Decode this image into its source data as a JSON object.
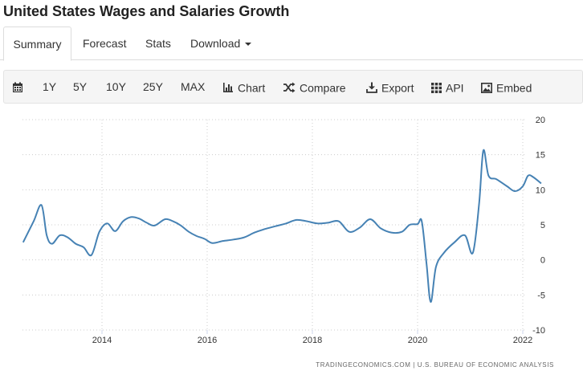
{
  "header": {
    "title": "United States Wages and Salaries Growth"
  },
  "tabs": [
    {
      "label": "Summary",
      "active": true
    },
    {
      "label": "Forecast"
    },
    {
      "label": "Stats"
    },
    {
      "label": "Download",
      "has_caret": true
    }
  ],
  "toolbar": {
    "calendar_icon": "calendar-icon",
    "ranges": [
      "1Y",
      "5Y",
      "10Y",
      "25Y",
      "MAX"
    ],
    "chart_label": "Chart",
    "compare_label": "Compare",
    "export_label": "Export",
    "api_label": "API",
    "embed_label": "Embed"
  },
  "source": "TRADINGECONOMICS.COM  |  U.S. BUREAU OF ECONOMIC ANALYSIS",
  "colors": {
    "line": "#4682b4",
    "grid": "#cccccc",
    "toolbar_bg": "#f5f5f5"
  },
  "chart_data": {
    "type": "line",
    "title": "",
    "xlabel": "",
    "ylabel": "",
    "ylim": [
      -10,
      20
    ],
    "yticks": [
      -10,
      -5,
      0,
      5,
      10,
      15,
      20
    ],
    "xticks": [
      2014,
      2016,
      2018,
      2020,
      2022
    ],
    "y_axis_side": "right",
    "grid": true,
    "series": [
      {
        "x": [
          2012.5,
          2012.7,
          2012.85,
          2012.95,
          2013.05,
          2013.2,
          2013.35,
          2013.5,
          2013.65,
          2013.8,
          2013.95,
          2014.1,
          2014.25,
          2014.4,
          2014.55,
          2014.7,
          2014.85,
          2015.0,
          2015.2,
          2015.35,
          2015.5,
          2015.65,
          2015.8,
          2015.95,
          2016.1,
          2016.3,
          2016.5,
          2016.7,
          2016.9,
          2017.1,
          2017.3,
          2017.5,
          2017.7,
          2017.9,
          2018.1,
          2018.3,
          2018.5,
          2018.7,
          2018.9,
          2019.1,
          2019.3,
          2019.5,
          2019.7,
          2019.85,
          2020.0,
          2020.08,
          2020.17,
          2020.25,
          2020.35,
          2020.5,
          2020.7,
          2020.9,
          2021.05,
          2021.17,
          2021.25,
          2021.35,
          2021.5,
          2021.7,
          2021.85,
          2022.0,
          2022.1,
          2022.2,
          2022.35
        ],
        "y": [
          2.5,
          5.5,
          7.8,
          3.5,
          2.3,
          3.5,
          3.2,
          2.3,
          1.8,
          0.7,
          4.0,
          5.2,
          4.1,
          5.5,
          6.1,
          5.9,
          5.3,
          4.9,
          5.8,
          5.5,
          4.9,
          4.0,
          3.4,
          3.0,
          2.4,
          2.7,
          2.9,
          3.2,
          3.9,
          4.4,
          4.8,
          5.2,
          5.7,
          5.5,
          5.2,
          5.3,
          5.5,
          4.0,
          4.6,
          5.8,
          4.5,
          3.9,
          4.0,
          5.0,
          5.1,
          5.5,
          -0.5,
          -6.0,
          -1.0,
          1.0,
          2.5,
          3.5,
          1.0,
          8.0,
          15.6,
          12.0,
          11.5,
          10.5,
          9.8,
          10.5,
          12.0,
          11.8,
          10.9
        ]
      }
    ]
  }
}
